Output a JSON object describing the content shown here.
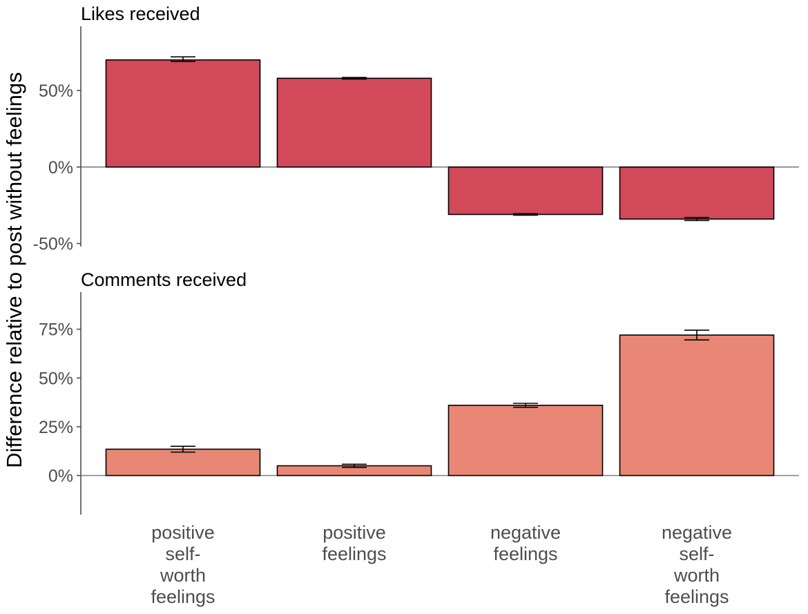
{
  "chart_data": {
    "type": "bar",
    "ylabel": "Difference relative to post without feelings",
    "categories": [
      "positive self- worth feelings",
      "positive feelings",
      "negative feelings",
      "negative self- worth feelings"
    ],
    "category_label_lines": [
      [
        "positive",
        "self-",
        "worth",
        "feelings"
      ],
      [
        "positive",
        "feelings"
      ],
      [
        "negative",
        "feelings"
      ],
      [
        "negative",
        "self-",
        "worth",
        "feelings"
      ]
    ],
    "panels": [
      {
        "title": "Likes received",
        "color": "#d2495a",
        "ylim": [
          -52,
          92
        ],
        "ticks": [
          -50,
          0,
          50
        ],
        "tick_labels": [
          "-50%",
          "0%",
          "50%"
        ],
        "values": [
          70,
          58,
          -31,
          -34
        ],
        "error_low": [
          69,
          57.5,
          -31.5,
          -35
        ],
        "error_high": [
          72,
          58.5,
          -30.5,
          -33
        ]
      },
      {
        "title": "Comments received",
        "color": "#e88776",
        "ylim": [
          -20,
          94
        ],
        "ticks": [
          0,
          25,
          50,
          75
        ],
        "tick_labels": [
          "0%",
          "25%",
          "50%",
          "75%"
        ],
        "values": [
          13.5,
          5,
          36,
          72
        ],
        "error_low": [
          12,
          4.2,
          35,
          69.5
        ],
        "error_high": [
          15,
          5.8,
          37,
          74.5
        ]
      }
    ]
  }
}
